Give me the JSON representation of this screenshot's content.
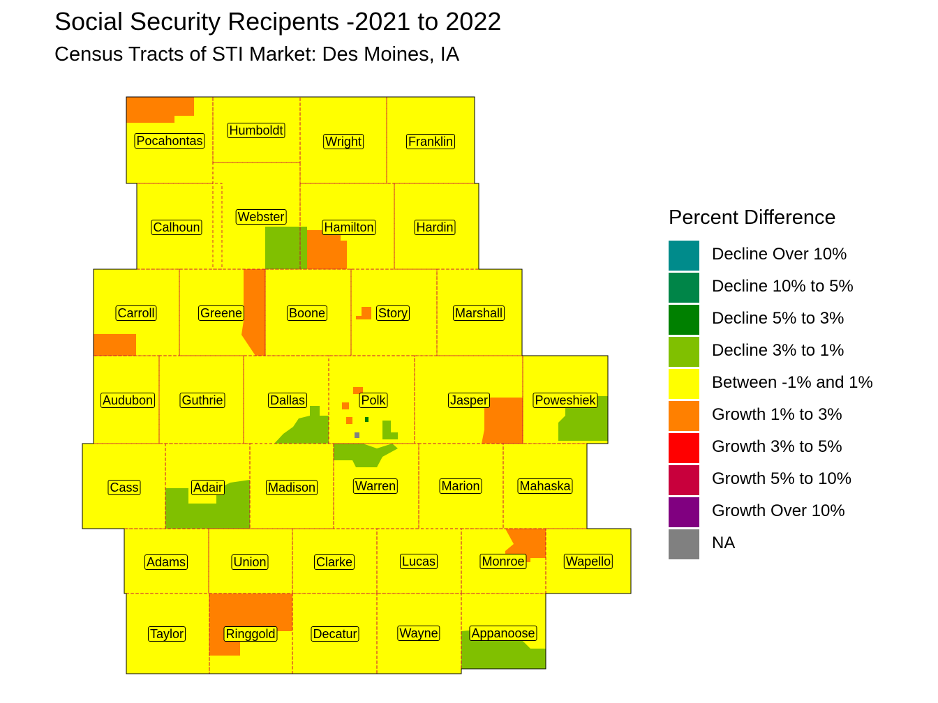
{
  "title": "Social Security Recipents -2021 to 2022",
  "subtitle": "Census Tracts of STI Market: Des Moines, IA",
  "legend": {
    "title": "Percent Difference",
    "items": [
      {
        "label": "Decline Over 10%",
        "color": "#008b8b"
      },
      {
        "label": "Decline 10% to 5%",
        "color": "#008548"
      },
      {
        "label": "Decline 5% to 3%",
        "color": "#008000"
      },
      {
        "label": "Decline 3% to 1%",
        "color": "#80c000"
      },
      {
        "label": "Between -1% and 1%",
        "color": "#ffff00"
      },
      {
        "label": "Growth 1% to 3%",
        "color": "#ff8000"
      },
      {
        "label": "Growth 3% to 5%",
        "color": "#ff0000"
      },
      {
        "label": "Growth 5% to 10%",
        "color": "#c8003c"
      },
      {
        "label": "Growth Over 10%",
        "color": "#800080"
      },
      {
        "label": "NA",
        "color": "#808080"
      }
    ]
  },
  "counties": [
    {
      "name": "Pocahontas",
      "category": "Between -1% and 1%"
    },
    {
      "name": "Humboldt",
      "category": "Between -1% and 1%"
    },
    {
      "name": "Wright",
      "category": "Between -1% and 1%"
    },
    {
      "name": "Franklin",
      "category": "Between -1% and 1%"
    },
    {
      "name": "Calhoun",
      "category": "Between -1% and 1%"
    },
    {
      "name": "Webster",
      "category": "Between -1% and 1%"
    },
    {
      "name": "Hamilton",
      "category": "Between -1% and 1%"
    },
    {
      "name": "Hardin",
      "category": "Between -1% and 1%"
    },
    {
      "name": "Carroll",
      "category": "Between -1% and 1%"
    },
    {
      "name": "Greene",
      "category": "Between -1% and 1%"
    },
    {
      "name": "Boone",
      "category": "Between -1% and 1%"
    },
    {
      "name": "Story",
      "category": "Between -1% and 1%"
    },
    {
      "name": "Marshall",
      "category": "Between -1% and 1%"
    },
    {
      "name": "Audubon",
      "category": "Between -1% and 1%"
    },
    {
      "name": "Guthrie",
      "category": "Between -1% and 1%"
    },
    {
      "name": "Dallas",
      "category": "Between -1% and 1%"
    },
    {
      "name": "Polk",
      "category": "Between -1% and 1%"
    },
    {
      "name": "Jasper",
      "category": "Between -1% and 1%"
    },
    {
      "name": "Poweshiek",
      "category": "Between -1% and 1%"
    },
    {
      "name": "Cass",
      "category": "Between -1% and 1%"
    },
    {
      "name": "Adair",
      "category": "Between -1% and 1%"
    },
    {
      "name": "Madison",
      "category": "Between -1% and 1%"
    },
    {
      "name": "Warren",
      "category": "Between -1% and 1%"
    },
    {
      "name": "Marion",
      "category": "Between -1% and 1%"
    },
    {
      "name": "Mahaska",
      "category": "Between -1% and 1%"
    },
    {
      "name": "Adams",
      "category": "Between -1% and 1%"
    },
    {
      "name": "Union",
      "category": "Between -1% and 1%"
    },
    {
      "name": "Clarke",
      "category": "Between -1% and 1%"
    },
    {
      "name": "Lucas",
      "category": "Between -1% and 1%"
    },
    {
      "name": "Monroe",
      "category": "Between -1% and 1%"
    },
    {
      "name": "Wapello",
      "category": "Between -1% and 1%"
    },
    {
      "name": "Taylor",
      "category": "Between -1% and 1%"
    },
    {
      "name": "Ringgold",
      "category": "Between -1% and 1%"
    },
    {
      "name": "Decatur",
      "category": "Between -1% and 1%"
    },
    {
      "name": "Wayne",
      "category": "Between -1% and 1%"
    },
    {
      "name": "Appanoose",
      "category": "Between -1% and 1%"
    }
  ]
}
